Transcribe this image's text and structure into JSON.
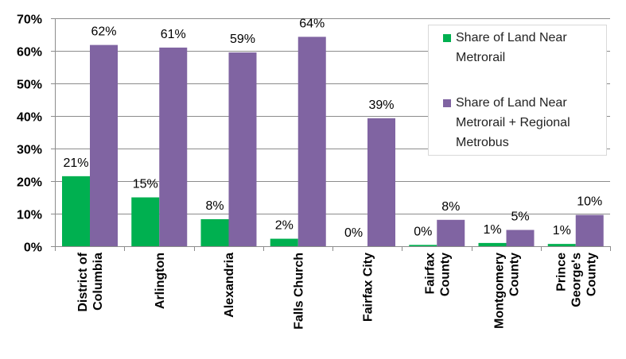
{
  "chart_data": {
    "type": "bar",
    "title": "",
    "xlabel": "",
    "ylabel": "",
    "ylim": [
      0,
      70
    ],
    "yticks": [
      "0%",
      "10%",
      "20%",
      "30%",
      "40%",
      "50%",
      "60%",
      "70%"
    ],
    "grid": true,
    "legend_position": "top-right",
    "categories": [
      [
        "District of",
        "Columbia"
      ],
      [
        "Arlington"
      ],
      [
        "Alexandria"
      ],
      [
        "Falls Church"
      ],
      [
        "Fairfax City"
      ],
      [
        "Fairfax",
        "County"
      ],
      [
        "Montgomery",
        "County"
      ],
      [
        "Prince",
        "George's",
        "County"
      ]
    ],
    "series": [
      {
        "name": "Share of Land Near Metrorail",
        "legend_lines": [
          "Share of Land Near",
          "Metrorail"
        ],
        "color": "#00B050",
        "values": [
          21.5,
          15.0,
          8.3,
          2.3,
          0.0,
          0.4,
          1.0,
          0.7
        ],
        "labels": [
          "21%",
          "15%",
          "8%",
          "2%",
          "0%",
          "0%",
          "1%",
          "1%"
        ]
      },
      {
        "name": "Share of Land Near Metrorail + Regional Metrobus",
        "legend_lines": [
          "Share of Land Near",
          "Metrorail + Regional",
          "Metrobus"
        ],
        "color": "#8064A2",
        "values": [
          61.8,
          61.0,
          59.5,
          64.3,
          39.3,
          8.1,
          5.0,
          9.6
        ],
        "labels": [
          "62%",
          "61%",
          "59%",
          "64%",
          "39%",
          "8%",
          "5%",
          "10%"
        ]
      }
    ]
  }
}
